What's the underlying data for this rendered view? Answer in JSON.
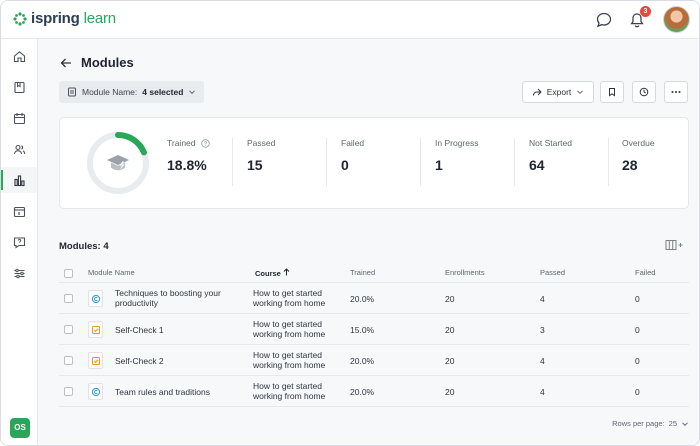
{
  "app": {
    "logo_prefix": "ispring",
    "logo_suffix": "learn",
    "notifications_count": "3",
    "user_initials": "OS"
  },
  "colors": {
    "brand": "#2aa65a",
    "badge": "#e5483d",
    "course_icon": "#3aa0d8",
    "selfcheck_icon": "#e8992a"
  },
  "page": {
    "title": "Modules",
    "filter_label": "Module Name:",
    "filter_value": "4 selected",
    "export_label": "Export"
  },
  "stats": {
    "trained_fraction": 0.188,
    "items": [
      {
        "label": "Trained",
        "value": "18.8%"
      },
      {
        "label": "Passed",
        "value": "15"
      },
      {
        "label": "Failed",
        "value": "0"
      },
      {
        "label": "In Progress",
        "value": "1"
      },
      {
        "label": "Not Started",
        "value": "64"
      },
      {
        "label": "Overdue",
        "value": "28"
      }
    ]
  },
  "table": {
    "title": "Modules: 4",
    "headers": [
      "Module Name",
      "Course",
      "Trained",
      "Enrollments",
      "Passed",
      "Failed"
    ],
    "rows": [
      {
        "icon": "course-icon",
        "name": "Techniques to boosting your productivity",
        "course": "How to get started working from home",
        "trained": "20.0%",
        "enrollments": "20",
        "passed": "4",
        "failed": "0"
      },
      {
        "icon": "self-check-icon",
        "name": "Self-Check 1",
        "course": "How to get started working from home",
        "trained": "15.0%",
        "enrollments": "20",
        "passed": "3",
        "failed": "0"
      },
      {
        "icon": "self-check-icon",
        "name": "Self-Check 2",
        "course": "How to get started working from home",
        "trained": "20.0%",
        "enrollments": "20",
        "passed": "4",
        "failed": "0"
      },
      {
        "icon": "course-icon",
        "name": "Team rules and traditions",
        "course": "How to get started working from home",
        "trained": "20.0%",
        "enrollments": "20",
        "passed": "4",
        "failed": "0"
      }
    ],
    "rows_per_page_label": "Rows per page:",
    "rows_per_page_value": "25"
  }
}
